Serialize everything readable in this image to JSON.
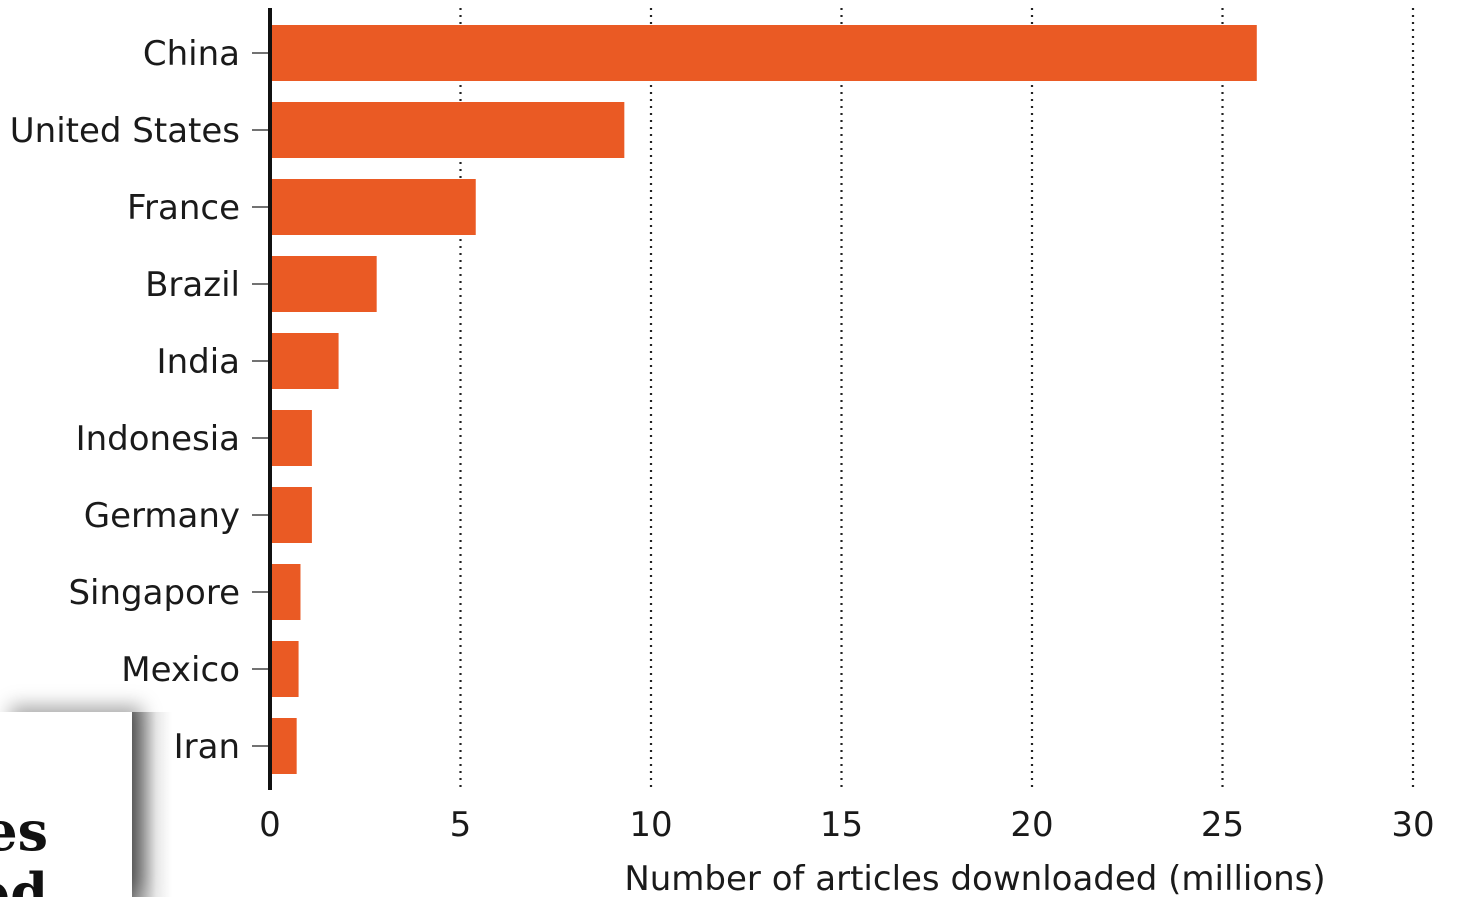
{
  "chart_data": {
    "type": "bar",
    "orientation": "horizontal",
    "categories": [
      "China",
      "United States",
      "France",
      "Brazil",
      "India",
      "Indonesia",
      "Germany",
      "Singapore",
      "Mexico",
      "Iran"
    ],
    "values": [
      25.9,
      9.3,
      5.4,
      2.8,
      1.8,
      1.1,
      1.1,
      0.8,
      0.75,
      0.7
    ],
    "xlabel": "Number of articles downloaded (millions)",
    "ylabel": "",
    "xlim": [
      0,
      30
    ],
    "xticks": [
      "0",
      "5",
      "10",
      "15",
      "20",
      "25",
      "30"
    ],
    "grid": "vertical dotted",
    "bar_color": "#EA5A24"
  },
  "overlay": {
    "line1": "es",
    "line2": "ed"
  }
}
